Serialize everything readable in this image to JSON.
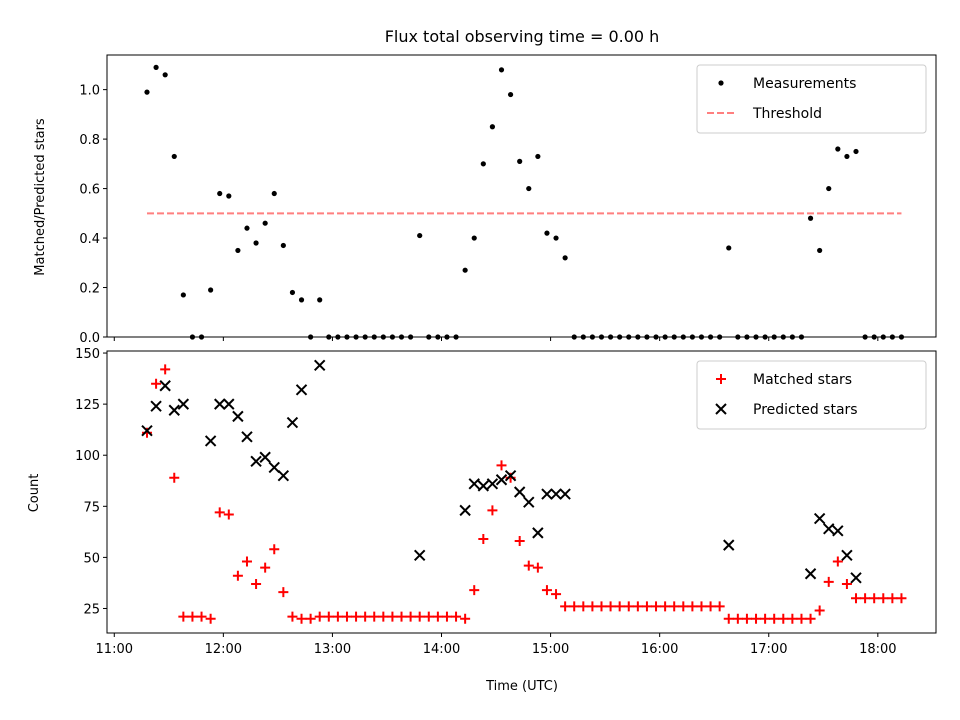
{
  "chart_data": [
    {
      "type": "scatter",
      "title": "Flux total observing time = 0.00 h",
      "xlabel": "",
      "ylabel": "Matched/Predicted stars",
      "xlim": [
        "10:56",
        "18:32"
      ],
      "ylim": [
        0,
        1.14
      ],
      "yticks": [
        "0.0",
        "0.2",
        "0.4",
        "0.6",
        "0.8",
        "1.0"
      ],
      "legend_position": "top-right",
      "series": [
        {
          "name": "Measurements",
          "color": "#000000",
          "marker": "dot",
          "points": [
            [
              "11:18",
              0.99
            ],
            [
              "11:23",
              1.09
            ],
            [
              "11:28",
              1.06
            ],
            [
              "11:33",
              0.73
            ],
            [
              "11:38",
              0.17
            ],
            [
              "11:43",
              0.0
            ],
            [
              "11:48",
              0.0
            ],
            [
              "11:53",
              0.19
            ],
            [
              "11:58",
              0.58
            ],
            [
              "12:03",
              0.57
            ],
            [
              "12:08",
              0.35
            ],
            [
              "12:13",
              0.44
            ],
            [
              "12:18",
              0.38
            ],
            [
              "12:23",
              0.46
            ],
            [
              "12:28",
              0.58
            ],
            [
              "12:33",
              0.37
            ],
            [
              "12:38",
              0.18
            ],
            [
              "12:43",
              0.15
            ],
            [
              "12:48",
              0.0
            ],
            [
              "12:53",
              0.15
            ],
            [
              "12:58",
              0.0
            ],
            [
              "13:03",
              0.0
            ],
            [
              "13:08",
              0.0
            ],
            [
              "13:13",
              0.0
            ],
            [
              "13:18",
              0.0
            ],
            [
              "13:23",
              0.0
            ],
            [
              "13:28",
              0.0
            ],
            [
              "13:33",
              0.0
            ],
            [
              "13:38",
              0.0
            ],
            [
              "13:43",
              0.0
            ],
            [
              "13:48",
              0.41
            ],
            [
              "13:53",
              0.0
            ],
            [
              "13:58",
              0.0
            ],
            [
              "14:03",
              0.0
            ],
            [
              "14:08",
              0.0
            ],
            [
              "14:13",
              0.27
            ],
            [
              "14:18",
              0.4
            ],
            [
              "14:23",
              0.7
            ],
            [
              "14:28",
              0.85
            ],
            [
              "14:33",
              1.08
            ],
            [
              "14:38",
              0.98
            ],
            [
              "14:43",
              0.71
            ],
            [
              "14:48",
              0.6
            ],
            [
              "14:53",
              0.73
            ],
            [
              "14:58",
              0.42
            ],
            [
              "15:03",
              0.4
            ],
            [
              "15:08",
              0.32
            ],
            [
              "15:13",
              0.0
            ],
            [
              "15:18",
              0.0
            ],
            [
              "15:23",
              0.0
            ],
            [
              "15:28",
              0.0
            ],
            [
              "15:33",
              0.0
            ],
            [
              "15:38",
              0.0
            ],
            [
              "15:43",
              0.0
            ],
            [
              "15:48",
              0.0
            ],
            [
              "15:53",
              0.0
            ],
            [
              "15:58",
              0.0
            ],
            [
              "16:03",
              0.0
            ],
            [
              "16:08",
              0.0
            ],
            [
              "16:13",
              0.0
            ],
            [
              "16:18",
              0.0
            ],
            [
              "16:23",
              0.0
            ],
            [
              "16:28",
              0.0
            ],
            [
              "16:33",
              0.0
            ],
            [
              "16:38",
              0.36
            ],
            [
              "16:43",
              0.0
            ],
            [
              "16:48",
              0.0
            ],
            [
              "16:53",
              0.0
            ],
            [
              "16:58",
              0.0
            ],
            [
              "17:03",
              0.0
            ],
            [
              "17:08",
              0.0
            ],
            [
              "17:13",
              0.0
            ],
            [
              "17:18",
              0.0
            ],
            [
              "17:23",
              0.48
            ],
            [
              "17:28",
              0.35
            ],
            [
              "17:33",
              0.6
            ],
            [
              "17:38",
              0.76
            ],
            [
              "17:43",
              0.73
            ],
            [
              "17:48",
              0.75
            ],
            [
              "17:53",
              0.0
            ],
            [
              "17:58",
              0.0
            ],
            [
              "18:03",
              0.0
            ],
            [
              "18:08",
              0.0
            ],
            [
              "18:13",
              0.0
            ]
          ]
        },
        {
          "name": "Threshold",
          "color": "#ff7f7f",
          "style": "dashed",
          "points": [
            [
              "11:18",
              0.5
            ],
            [
              "18:13",
              0.5
            ]
          ]
        }
      ]
    },
    {
      "type": "scatter",
      "xlabel": "Time (UTC)",
      "ylabel": "Count",
      "xlim": [
        "10:56",
        "18:32"
      ],
      "ylim": [
        13,
        151
      ],
      "xticks": [
        "11:00",
        "12:00",
        "13:00",
        "14:00",
        "15:00",
        "16:00",
        "17:00",
        "18:00"
      ],
      "yticks": [
        "25",
        "50",
        "75",
        "100",
        "125",
        "150"
      ],
      "legend_position": "top-right",
      "series": [
        {
          "name": "Matched stars",
          "color": "#ff0000",
          "marker": "plus",
          "points": [
            [
              "11:18",
              111
            ],
            [
              "11:23",
              135
            ],
            [
              "11:28",
              142
            ],
            [
              "11:33",
              89
            ],
            [
              "11:38",
              21
            ],
            [
              "11:43",
              21
            ],
            [
              "11:48",
              21
            ],
            [
              "11:53",
              20
            ],
            [
              "11:58",
              72
            ],
            [
              "12:03",
              71
            ],
            [
              "12:08",
              41
            ],
            [
              "12:13",
              48
            ],
            [
              "12:18",
              37
            ],
            [
              "12:23",
              45
            ],
            [
              "12:28",
              54
            ],
            [
              "12:33",
              33
            ],
            [
              "12:38",
              21
            ],
            [
              "12:43",
              20
            ],
            [
              "12:48",
              20
            ],
            [
              "12:53",
              21
            ],
            [
              "12:58",
              21
            ],
            [
              "13:03",
              21
            ],
            [
              "13:08",
              21
            ],
            [
              "13:13",
              21
            ],
            [
              "13:18",
              21
            ],
            [
              "13:23",
              21
            ],
            [
              "13:28",
              21
            ],
            [
              "13:33",
              21
            ],
            [
              "13:38",
              21
            ],
            [
              "13:43",
              21
            ],
            [
              "13:48",
              21
            ],
            [
              "13:53",
              21
            ],
            [
              "13:58",
              21
            ],
            [
              "14:03",
              21
            ],
            [
              "14:08",
              21
            ],
            [
              "14:13",
              20
            ],
            [
              "14:18",
              34
            ],
            [
              "14:23",
              59
            ],
            [
              "14:28",
              73
            ],
            [
              "14:33",
              95
            ],
            [
              "14:38",
              89
            ],
            [
              "14:43",
              58
            ],
            [
              "14:48",
              46
            ],
            [
              "14:53",
              45
            ],
            [
              "14:58",
              34
            ],
            [
              "15:03",
              32
            ],
            [
              "15:08",
              26
            ],
            [
              "15:13",
              26
            ],
            [
              "15:18",
              26
            ],
            [
              "15:23",
              26
            ],
            [
              "15:28",
              26
            ],
            [
              "15:33",
              26
            ],
            [
              "15:38",
              26
            ],
            [
              "15:43",
              26
            ],
            [
              "15:48",
              26
            ],
            [
              "15:53",
              26
            ],
            [
              "15:58",
              26
            ],
            [
              "16:03",
              26
            ],
            [
              "16:08",
              26
            ],
            [
              "16:13",
              26
            ],
            [
              "16:18",
              26
            ],
            [
              "16:23",
              26
            ],
            [
              "16:28",
              26
            ],
            [
              "16:33",
              26
            ],
            [
              "16:38",
              20
            ],
            [
              "16:43",
              20
            ],
            [
              "16:48",
              20
            ],
            [
              "16:53",
              20
            ],
            [
              "16:58",
              20
            ],
            [
              "17:03",
              20
            ],
            [
              "17:08",
              20
            ],
            [
              "17:13",
              20
            ],
            [
              "17:18",
              20
            ],
            [
              "17:23",
              20
            ],
            [
              "17:28",
              24
            ],
            [
              "17:33",
              38
            ],
            [
              "17:38",
              48
            ],
            [
              "17:43",
              37
            ],
            [
              "17:48",
              30
            ],
            [
              "17:53",
              30
            ],
            [
              "17:58",
              30
            ],
            [
              "18:03",
              30
            ],
            [
              "18:08",
              30
            ],
            [
              "18:13",
              30
            ]
          ]
        },
        {
          "name": "Predicted stars",
          "color": "#000000",
          "marker": "x",
          "points": [
            [
              "11:18",
              112
            ],
            [
              "11:23",
              124
            ],
            [
              "11:28",
              134
            ],
            [
              "11:33",
              122
            ],
            [
              "11:38",
              125
            ],
            [
              "11:53",
              107
            ],
            [
              "11:58",
              125
            ],
            [
              "12:03",
              125
            ],
            [
              "12:08",
              119
            ],
            [
              "12:13",
              109
            ],
            [
              "12:18",
              97
            ],
            [
              "12:23",
              99
            ],
            [
              "12:28",
              94
            ],
            [
              "12:33",
              90
            ],
            [
              "12:38",
              116
            ],
            [
              "12:43",
              132
            ],
            [
              "12:53",
              144
            ],
            [
              "13:48",
              51
            ],
            [
              "14:13",
              73
            ],
            [
              "14:18",
              86
            ],
            [
              "14:23",
              85
            ],
            [
              "14:28",
              86
            ],
            [
              "14:33",
              88
            ],
            [
              "14:38",
              90
            ],
            [
              "14:43",
              82
            ],
            [
              "14:48",
              77
            ],
            [
              "14:53",
              62
            ],
            [
              "14:58",
              81
            ],
            [
              "15:03",
              81
            ],
            [
              "15:08",
              81
            ],
            [
              "16:38",
              56
            ],
            [
              "17:23",
              42
            ],
            [
              "17:28",
              69
            ],
            [
              "17:33",
              64
            ],
            [
              "17:38",
              63
            ],
            [
              "17:43",
              51
            ],
            [
              "17:48",
              40
            ]
          ]
        }
      ]
    }
  ]
}
